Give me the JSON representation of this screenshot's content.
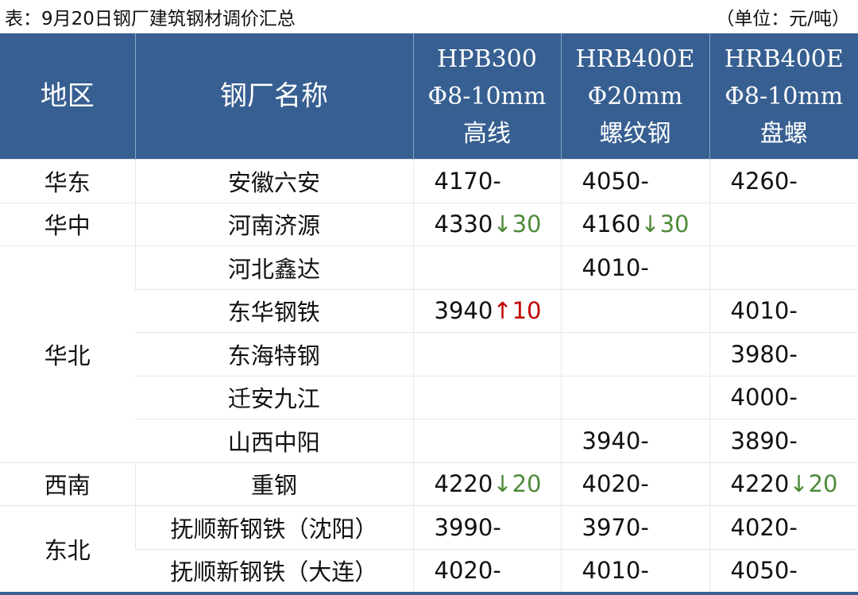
{
  "caption": {
    "title": "表：9月20日钢厂建筑钢材调价汇总",
    "unit": "（单位：元/吨）"
  },
  "headers": [
    {
      "lines": [
        "地区"
      ]
    },
    {
      "lines": [
        "钢厂名称"
      ]
    },
    {
      "lines": [
        "HPB300",
        "Φ8-10mm",
        "高线"
      ]
    },
    {
      "lines": [
        "HRB400E",
        "Φ20mm",
        "螺纹钢"
      ]
    },
    {
      "lines": [
        "HRB400E",
        "Φ8-10mm",
        "盘螺"
      ]
    }
  ],
  "colors": {
    "header_bg": "#375f91",
    "down": "#4e8a3a",
    "up": "#c00000"
  },
  "rows": [
    {
      "region": "华东",
      "span": 1,
      "mill": "安徽六安",
      "cells": [
        {
          "v": "4170",
          "c": "-",
          "t": "flat"
        },
        {
          "v": "4050",
          "c": "-",
          "t": "flat"
        },
        {
          "v": "4260",
          "c": "-",
          "t": "flat"
        }
      ]
    },
    {
      "region": "华中",
      "span": 1,
      "mill": "河南济源",
      "cells": [
        {
          "v": "4330",
          "c": "↓30",
          "t": "down"
        },
        {
          "v": "4160",
          "c": "↓30",
          "t": "down"
        },
        {
          "v": "",
          "c": "",
          "t": "flat"
        }
      ]
    },
    {
      "region": "华北",
      "span": 5,
      "mill": "河北鑫达",
      "cells": [
        {
          "v": "",
          "c": "",
          "t": "flat"
        },
        {
          "v": "4010",
          "c": "-",
          "t": "flat"
        },
        {
          "v": "",
          "c": "",
          "t": "flat"
        }
      ]
    },
    {
      "region": null,
      "mill": "东华钢铁",
      "cells": [
        {
          "v": "3940",
          "c": "↑10",
          "t": "up"
        },
        {
          "v": "",
          "c": "",
          "t": "flat"
        },
        {
          "v": "4010",
          "c": "-",
          "t": "flat"
        }
      ]
    },
    {
      "region": null,
      "mill": "东海特钢",
      "cells": [
        {
          "v": "",
          "c": "",
          "t": "flat"
        },
        {
          "v": "",
          "c": "",
          "t": "flat"
        },
        {
          "v": "3980",
          "c": "-",
          "t": "flat"
        }
      ]
    },
    {
      "region": null,
      "mill": "迁安九江",
      "cells": [
        {
          "v": "",
          "c": "",
          "t": "flat"
        },
        {
          "v": "",
          "c": "",
          "t": "flat"
        },
        {
          "v": "4000",
          "c": "-",
          "t": "flat"
        }
      ]
    },
    {
      "region": null,
      "mill": "山西中阳",
      "cells": [
        {
          "v": "",
          "c": "",
          "t": "flat"
        },
        {
          "v": "3940",
          "c": "-",
          "t": "flat"
        },
        {
          "v": "3890",
          "c": "-",
          "t": "flat"
        }
      ]
    },
    {
      "region": "西南",
      "span": 1,
      "mill": "重钢",
      "cells": [
        {
          "v": "4220",
          "c": "↓20",
          "t": "down"
        },
        {
          "v": "4020",
          "c": "-",
          "t": "flat"
        },
        {
          "v": "4220",
          "c": "↓20",
          "t": "down"
        }
      ]
    },
    {
      "region": "东北",
      "span": 2,
      "mill": "抚顺新钢铁（沈阳）",
      "cells": [
        {
          "v": "3990",
          "c": "-",
          "t": "flat"
        },
        {
          "v": "3970",
          "c": "-",
          "t": "flat"
        },
        {
          "v": "4020",
          "c": "-",
          "t": "flat"
        }
      ]
    },
    {
      "region": null,
      "mill": "抚顺新钢铁（大连）",
      "cells": [
        {
          "v": "4020",
          "c": "-",
          "t": "flat"
        },
        {
          "v": "4010",
          "c": "-",
          "t": "flat"
        },
        {
          "v": "4050",
          "c": "-",
          "t": "flat"
        }
      ]
    }
  ]
}
